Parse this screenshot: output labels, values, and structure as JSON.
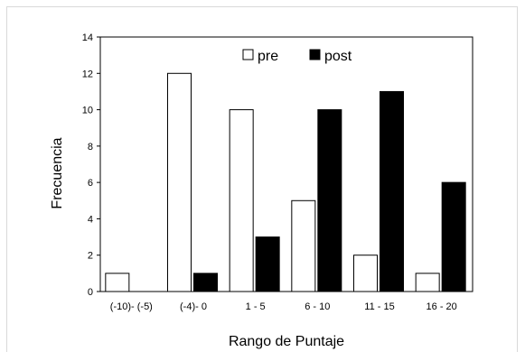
{
  "chart_data": {
    "type": "bar",
    "title": "",
    "xlabel": "Rango de Puntaje",
    "ylabel": "Frecuencia",
    "categories": [
      "(-10)- (-5)",
      "(-4)- 0",
      "1 - 5",
      "6 - 10",
      "11 - 15",
      "16 - 20"
    ],
    "series": [
      {
        "name": "pre",
        "values": [
          1,
          12,
          10,
          5,
          2,
          1
        ],
        "color": "#ffffff"
      },
      {
        "name": "post",
        "values": [
          0,
          1,
          3,
          10,
          11,
          6
        ],
        "color": "#000000"
      }
    ],
    "ylim": [
      0,
      14
    ],
    "yticks": [
      0,
      2,
      4,
      6,
      8,
      10,
      12,
      14
    ],
    "grid": false,
    "legend": "top-center"
  }
}
